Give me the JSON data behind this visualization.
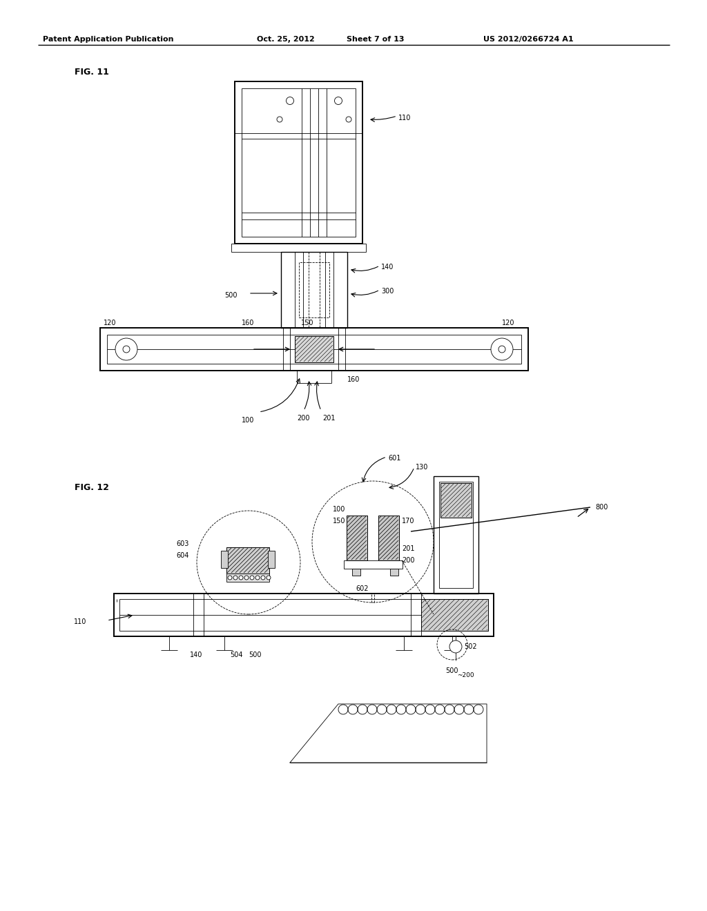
{
  "page_bg": "#ffffff",
  "header_text": "Patent Application Publication",
  "header_date": "Oct. 25, 2012",
  "header_sheet": "Sheet 7 of 13",
  "header_patent": "US 2012/0266724 A1",
  "fig11_label": "FIG. 11",
  "fig12_label": "FIG. 12",
  "line_color": "#000000",
  "lw_thin": 0.6,
  "lw_med": 1.0,
  "lw_thick": 1.4
}
